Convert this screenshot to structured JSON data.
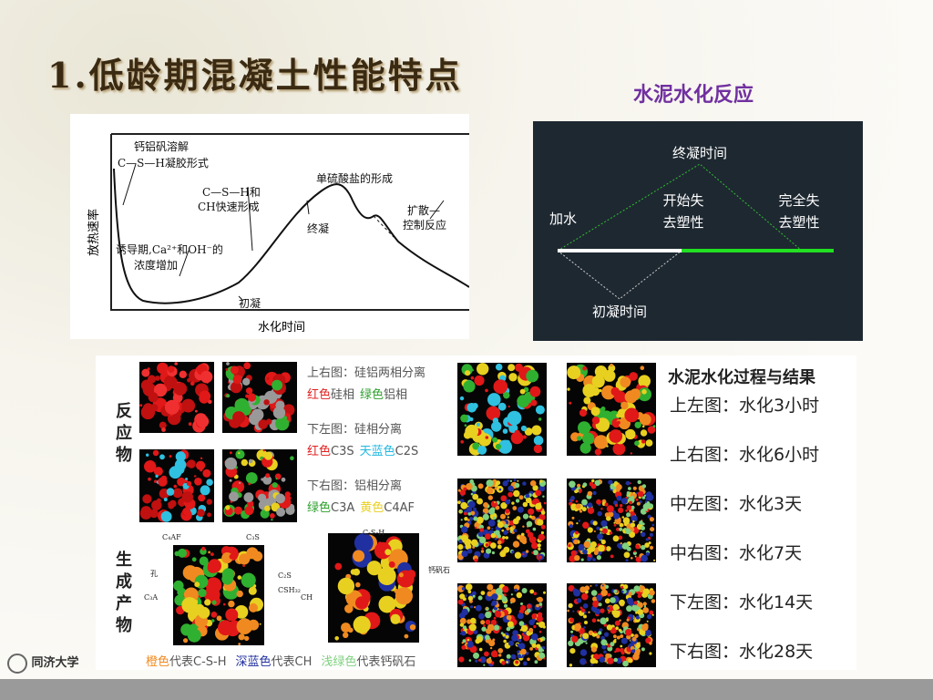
{
  "header": {
    "title": "1.低龄期混凝土性能特点",
    "subtitle": "水泥水化反应"
  },
  "heat_curve": {
    "y_label": "放热速率",
    "x_label": "水化时间",
    "annotations": [
      "钙铝矾溶解",
      "C—S—H凝胶形式",
      "C—S—H和",
      "CH快速形成",
      "单硫酸盐的形成",
      "终凝",
      "扩散—",
      "控制反应",
      "诱导期,Ca²⁺和OH⁻的",
      "浓度增加",
      "初凝"
    ]
  },
  "setting_diagram": {
    "final_set_time": "终凝时间",
    "start_loss_1": "开始失",
    "start_loss_2": "去塑性",
    "full_loss_1": "完全失",
    "full_loss_2": "去塑性",
    "add_water": "加水",
    "initial_set_time": "初凝时间"
  },
  "microstructure": {
    "reactants_label": "反应物",
    "products_label": "生成产物",
    "notes": [
      {
        "heading": "上右图：硅铝两相分离",
        "items": [
          {
            "color_word": "红色",
            "text": "硅相"
          },
          {
            "color_word": "绿色",
            "text": "铝相"
          }
        ]
      },
      {
        "heading": "下左图：硅相分离",
        "items": [
          {
            "color_word": "红色",
            "text": "C3S"
          },
          {
            "color_word": "天蓝色",
            "text": "C2S"
          }
        ]
      },
      {
        "heading": "下右图：铝相分离",
        "items": [
          {
            "color_word": "绿色",
            "text": "C3A"
          },
          {
            "color_word": "黄色",
            "text": "C4AF"
          }
        ]
      }
    ],
    "product_labels": [
      "C₄AF",
      "C₃S",
      "孔",
      "C₂S",
      "C₃A",
      "CSH₃₂",
      "CH",
      "C-S-H",
      "钙矾石"
    ],
    "legend": [
      {
        "color_word": "橙色",
        "text": "代表C-S-H"
      },
      {
        "color_word": "深蓝色",
        "text": "代表CH"
      },
      {
        "color_word": "浅绿色",
        "text": "代表钙矾石"
      }
    ]
  },
  "hydration_list": {
    "title": "水泥水化过程与结果",
    "items": [
      "上左图：水化3小时",
      "上右图：水化6小时",
      "中左图：水化3天",
      "中右图：水化7天",
      "下左图：水化14天",
      "下右图：水化28天"
    ]
  },
  "footer": {
    "logo_text": "同济大学"
  }
}
